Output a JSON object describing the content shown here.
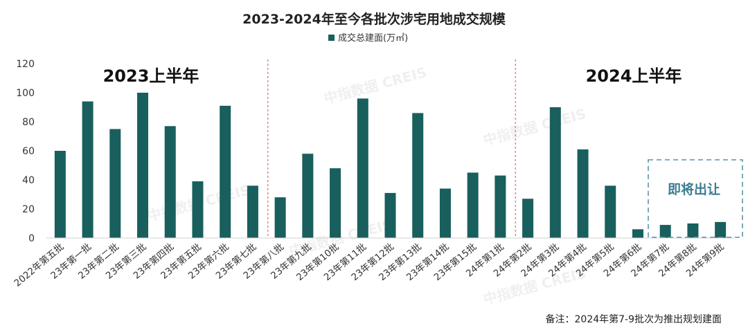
{
  "chart_data": {
    "type": "bar",
    "title": "2023-2024年至今各批次涉宅用地成交规模",
    "series": [
      {
        "name": "成交总建面(万㎡)",
        "color": "#185f5d",
        "values": [
          60,
          94,
          75,
          100,
          77,
          39,
          91,
          36,
          28,
          58,
          48,
          96,
          31,
          86,
          34,
          45,
          43,
          27,
          90,
          61,
          36,
          6,
          9,
          10,
          11
        ]
      }
    ],
    "categories": [
      "2022年第五批",
      "23年第一批",
      "23年第二批",
      "23年第三批",
      "23年第四批",
      "23年第五批",
      "23年第六批",
      "23年第七批",
      "23年第八批",
      "23年第九批",
      "23年第10批",
      "23年第11批",
      "23年第12批",
      "23年第13批",
      "23年第14批",
      "23年第15批",
      "24年第1批",
      "24年第2批",
      "24年第3批",
      "24年第4批",
      "24年第5批",
      "24年第6批",
      "24年第7批",
      "24年第8批",
      "24年第9批"
    ],
    "ylim": [
      0,
      120
    ],
    "yticks": [
      0,
      20,
      40,
      60,
      80,
      100,
      120
    ],
    "grid": false,
    "legend_position": "top-center",
    "annotations": {
      "period_2023": "2023上半年",
      "period_2024": "2024上半年",
      "upcoming": "即将出让"
    },
    "note": "备注：2024年第7-9批次为推出规划建面",
    "watermarks": [
      "中指数据 CREIS"
    ]
  }
}
